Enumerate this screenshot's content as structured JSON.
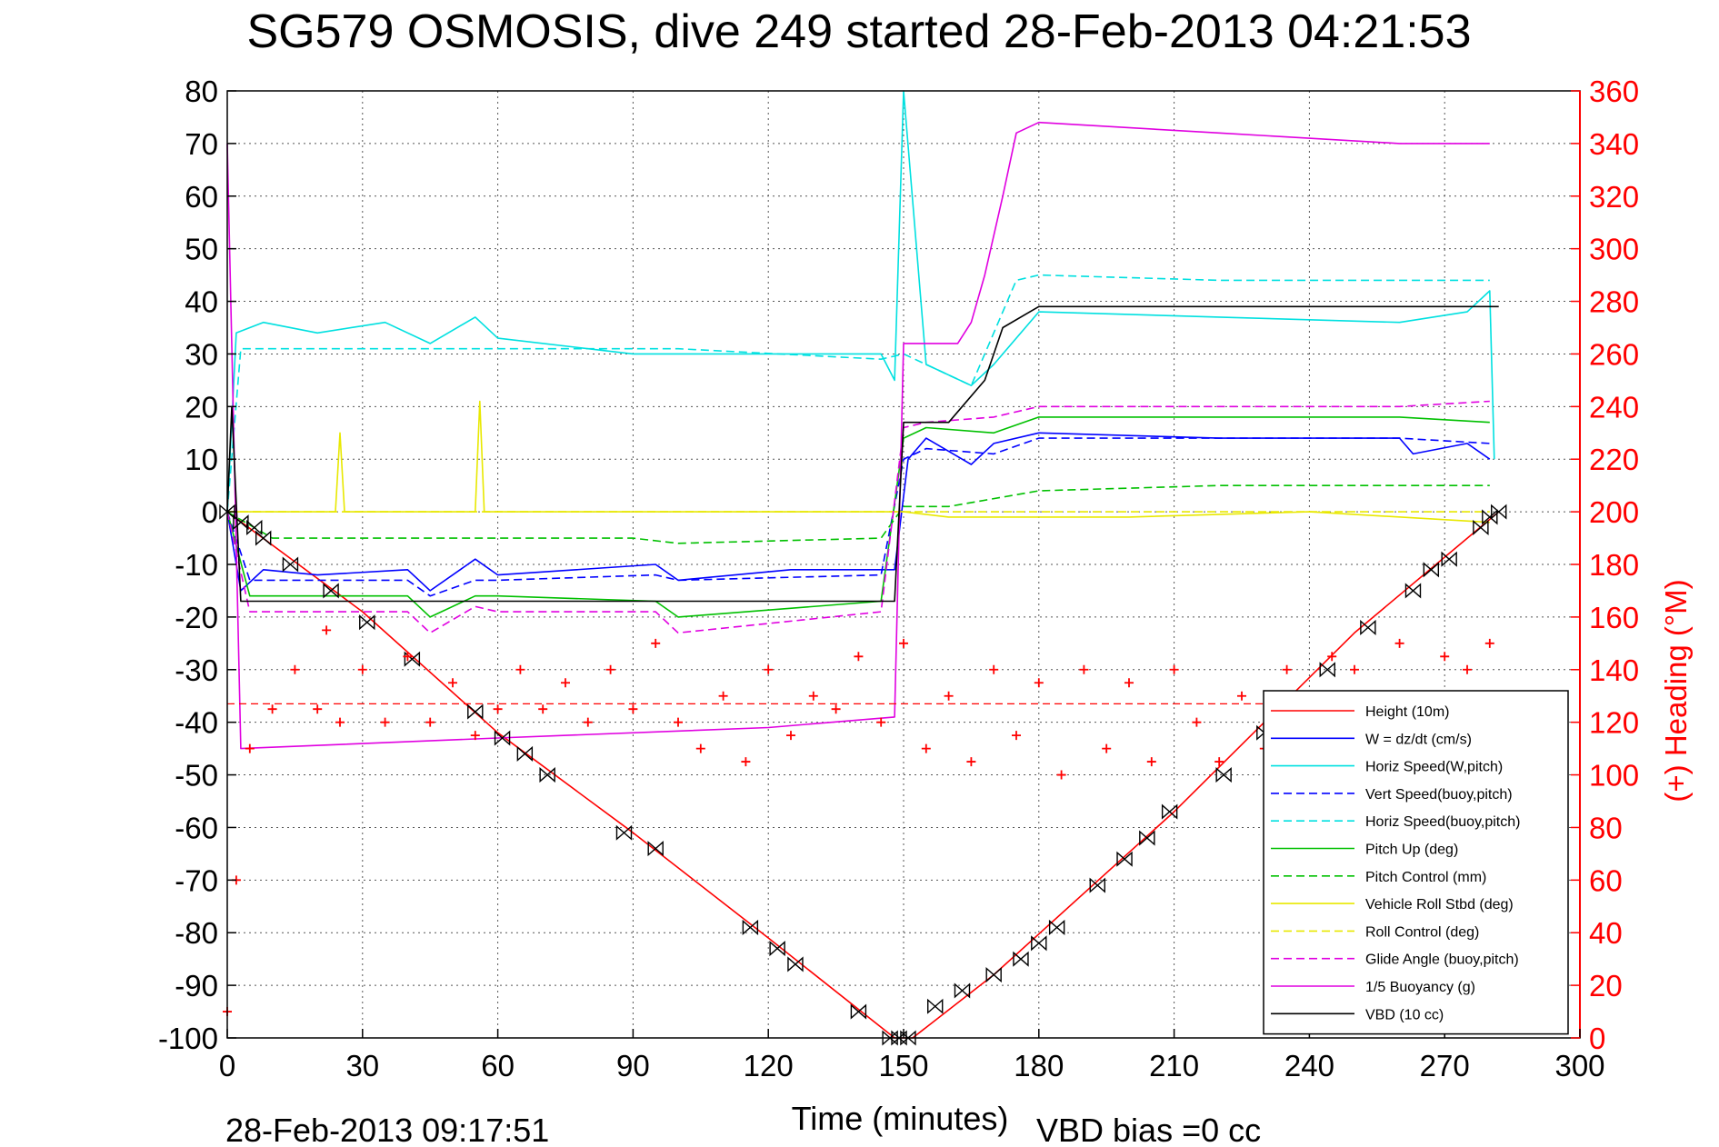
{
  "chart_data": {
    "type": "line",
    "title": "SG579 OSMOSIS, dive 249 started 28-Feb-2013 04:21:53",
    "xlabel": "Time (minutes)",
    "ylabel_right": "(+) Heading (°M)",
    "xlim": [
      0,
      300
    ],
    "ylim_left": [
      -100,
      80
    ],
    "ylim_right": [
      0,
      360
    ],
    "xticks": [
      "0",
      "30",
      "60",
      "90",
      "120",
      "150",
      "180",
      "210",
      "240",
      "270",
      "300"
    ],
    "yticks_left": [
      "80",
      "70",
      "60",
      "50",
      "40",
      "30",
      "20",
      "10",
      "0",
      "-10",
      "-20",
      "-30",
      "-40",
      "-50",
      "-60",
      "-70",
      "-80",
      "-90",
      "-100"
    ],
    "yticks_right": [
      "360",
      "340",
      "320",
      "300",
      "280",
      "260",
      "240",
      "220",
      "200",
      "180",
      "160",
      "140",
      "120",
      "100",
      "80",
      "60",
      "40",
      "20",
      "0"
    ],
    "grid": true,
    "legend_position": "bottom-right",
    "footer_timestamp": "28-Feb-2013 09:17:51",
    "footer_vbd": "VBD bias =0 cc",
    "series": [
      {
        "name": "Height (10m)",
        "color": "#ff0000",
        "style": "solid",
        "x": [
          0,
          30,
          60,
          90,
          120,
          148,
          150,
          152,
          170,
          210,
          250,
          282
        ],
        "y": [
          0,
          -19,
          -42,
          -61,
          -81,
          -100,
          -100,
          -100,
          -88,
          -57,
          -23,
          0
        ]
      },
      {
        "name": "W = dz/dt (cm/s)",
        "color": "#0000ff",
        "style": "solid",
        "x": [
          0,
          3,
          8,
          20,
          40,
          45,
          55,
          60,
          95,
          100,
          125,
          145,
          148,
          151,
          155,
          165,
          170,
          180,
          220,
          260,
          263,
          275,
          280
        ],
        "y": [
          0,
          -15,
          -11,
          -12,
          -11,
          -15,
          -9,
          -12,
          -10,
          -13,
          -11,
          -11,
          -11,
          10,
          14,
          9,
          13,
          15,
          14,
          14,
          11,
          13,
          10
        ]
      },
      {
        "name": "Horiz Speed(W,pitch)",
        "color": "#00e0e0",
        "style": "solid",
        "x": [
          0,
          2,
          8,
          20,
          35,
          45,
          55,
          60,
          90,
          120,
          145,
          148,
          150,
          155,
          165,
          170,
          180,
          220,
          260,
          275,
          280,
          281
        ],
        "y": [
          0,
          34,
          36,
          34,
          36,
          32,
          37,
          33,
          30,
          30,
          30,
          25,
          80,
          28,
          24,
          28,
          38,
          37,
          36,
          38,
          42,
          10
        ]
      },
      {
        "name": "Vert Speed(buoy,pitch)",
        "color": "#0000ff",
        "style": "dashed",
        "x": [
          0,
          5,
          40,
          45,
          55,
          60,
          95,
          100,
          145,
          150,
          155,
          170,
          180,
          220,
          260,
          280
        ],
        "y": [
          0,
          -13,
          -13,
          -16,
          -13,
          -13,
          -12,
          -13,
          -12,
          10,
          12,
          11,
          14,
          14,
          14,
          13
        ]
      },
      {
        "name": "Horiz Speed(buoy,pitch)",
        "color": "#00e0e0",
        "style": "dashed",
        "x": [
          0,
          3,
          40,
          60,
          100,
          145,
          150,
          165,
          175,
          180,
          220,
          260,
          280
        ],
        "y": [
          0,
          31,
          31,
          31,
          31,
          29,
          30,
          24,
          44,
          45,
          44,
          44,
          44
        ]
      },
      {
        "name": "Pitch Up (deg)",
        "color": "#00c000",
        "style": "solid",
        "x": [
          0,
          5,
          40,
          45,
          55,
          60,
          95,
          100,
          145,
          150,
          155,
          170,
          180,
          220,
          260,
          280
        ],
        "y": [
          0,
          -16,
          -16,
          -20,
          -16,
          -16,
          -17,
          -20,
          -17,
          14,
          16,
          15,
          18,
          18,
          18,
          17
        ]
      },
      {
        "name": "Pitch Control (mm)",
        "color": "#00c000",
        "style": "dashed",
        "x": [
          0,
          10,
          40,
          50,
          90,
          100,
          145,
          150,
          160,
          180,
          220,
          280
        ],
        "y": [
          0,
          -5,
          -5,
          -5,
          -5,
          -6,
          -5,
          1,
          1,
          4,
          5,
          5
        ]
      },
      {
        "name": "Vehicle Roll Stbd (deg)",
        "color": "#e8e800",
        "style": "solid",
        "x": [
          0,
          10,
          24,
          25,
          26,
          55,
          56,
          57,
          100,
          150,
          160,
          200,
          240,
          280
        ],
        "y": [
          0,
          0,
          0,
          15,
          0,
          0,
          21,
          0,
          0,
          0,
          -1,
          -1,
          0,
          -2
        ]
      },
      {
        "name": "Roll Control (deg)",
        "color": "#e8e800",
        "style": "dashed",
        "x": [
          0,
          280
        ],
        "y": [
          0,
          0
        ]
      },
      {
        "name": "Glide Angle (buoy,pitch)",
        "color": "#e000e0",
        "style": "dashed",
        "x": [
          0,
          5,
          40,
          45,
          55,
          60,
          95,
          100,
          145,
          150,
          155,
          170,
          180,
          220,
          260,
          280
        ],
        "y": [
          0,
          -19,
          -19,
          -23,
          -18,
          -19,
          -19,
          -23,
          -19,
          16,
          17,
          18,
          20,
          20,
          20,
          21
        ]
      },
      {
        "name": "1/5 Buoyancy (g)",
        "color": "#e000e0",
        "style": "solid",
        "x": [
          0,
          3,
          60,
          120,
          148,
          150,
          155,
          162,
          165,
          168,
          172,
          175,
          180,
          220,
          260,
          280
        ],
        "y": [
          70,
          -45,
          -43,
          -41,
          -39,
          32,
          32,
          32,
          36,
          45,
          60,
          72,
          74,
          72,
          70,
          70
        ]
      },
      {
        "name": "VBD (10 cc)",
        "color": "#000000",
        "style": "solid",
        "x": [
          0,
          1,
          3,
          148,
          150,
          160,
          163,
          168,
          172,
          178,
          180,
          282
        ],
        "y": [
          0,
          20,
          -17,
          -17,
          17,
          17,
          20,
          25,
          35,
          38,
          39,
          39
        ]
      }
    ],
    "heading_series": {
      "name": "Heading",
      "axis": "right",
      "color": "#ff0000",
      "marker": "+",
      "x": [
        0,
        2,
        5,
        10,
        15,
        20,
        22,
        25,
        30,
        35,
        40,
        45,
        50,
        55,
        60,
        65,
        70,
        75,
        80,
        85,
        90,
        95,
        100,
        105,
        110,
        115,
        120,
        125,
        130,
        135,
        140,
        145,
        150,
        155,
        160,
        165,
        170,
        175,
        180,
        185,
        190,
        195,
        200,
        205,
        210,
        215,
        220,
        225,
        230,
        235,
        240,
        245,
        250,
        255,
        260,
        265,
        270,
        275,
        280
      ],
      "y": [
        10,
        60,
        110,
        125,
        140,
        125,
        155,
        120,
        140,
        120,
        145,
        120,
        135,
        115,
        125,
        140,
        125,
        135,
        120,
        140,
        125,
        150,
        120,
        110,
        130,
        105,
        140,
        115,
        130,
        125,
        145,
        120,
        150,
        110,
        130,
        105,
        140,
        115,
        135,
        100,
        140,
        110,
        135,
        105,
        140,
        120,
        105,
        130,
        110,
        140,
        125,
        145,
        140,
        130,
        150,
        130,
        145,
        140,
        150
      ]
    },
    "heading_mean": 127,
    "height_markers": {
      "x": [
        0,
        3,
        6,
        8,
        14,
        23,
        31,
        41,
        55,
        61,
        66,
        71,
        88,
        95,
        116,
        122,
        126,
        140,
        147,
        149,
        151,
        157,
        163,
        170,
        176,
        180,
        184,
        193,
        199,
        204,
        209,
        221,
        230,
        244,
        253,
        263,
        267,
        271,
        278,
        280,
        282
      ],
      "y": [
        0,
        -2,
        -3,
        -5,
        -10,
        -15,
        -21,
        -28,
        -38,
        -43,
        -46,
        -50,
        -61,
        -64,
        -79,
        -83,
        -86,
        -95,
        -100,
        -100,
        -100,
        -94,
        -91,
        -88,
        -85,
        -82,
        -79,
        -71,
        -66,
        -62,
        -57,
        -50,
        -42,
        -30,
        -22,
        -15,
        -11,
        -9,
        -3,
        -1,
        0
      ]
    }
  }
}
